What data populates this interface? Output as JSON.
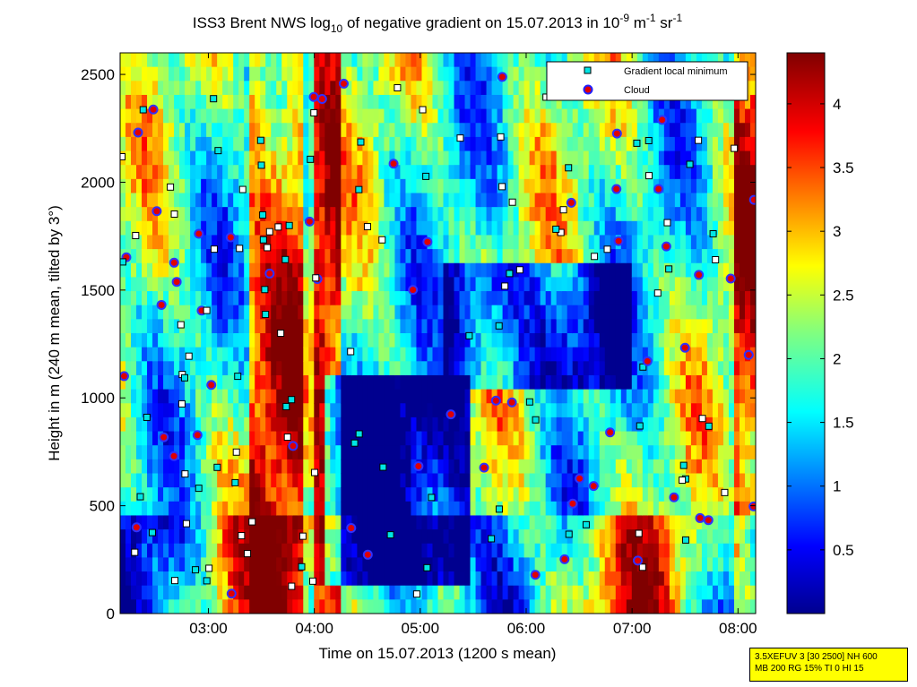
{
  "chart_data": {
    "type": "heatmap",
    "title_parts": {
      "pre": "ISS3 Brent NWS log",
      "sub": "10",
      "mid": " of negative gradient on 15.07.2013 in 10",
      "sup1": "-9",
      "m": " m",
      "sup2": "-1",
      "sr": " sr",
      "sup3": "-1"
    },
    "xlabel": "Time on 15.07.2013 (1200 s mean)",
    "ylabel": "Height in m (240 m mean, tilted by 3°)",
    "xlim": [
      "02:10",
      "08:10"
    ],
    "ylim": [
      0,
      2600
    ],
    "x_ticks": [
      "03:00",
      "04:00",
      "05:00",
      "06:00",
      "07:00",
      "08:00"
    ],
    "y_ticks": [
      "0",
      "500",
      "1000",
      "1500",
      "2000",
      "2500"
    ],
    "colorbar": {
      "range": [
        0,
        4.4
      ],
      "ticks": [
        "0.5",
        "1",
        "1.5",
        "2",
        "2.5",
        "3",
        "3.5",
        "4"
      ]
    },
    "legend": {
      "position": "top-right",
      "entries": [
        {
          "label": "Gradient local minimum",
          "marker": "square",
          "color": "#00e5e5"
        },
        {
          "label": "Cloud",
          "marker": "circle",
          "color": "#ff0000"
        }
      ]
    },
    "colors": {
      "low": "#00008f",
      "mid_low": "#00bfff",
      "mid": "#80ff80",
      "mid_high": "#ffd000",
      "high": "#ff2000",
      "max": "#800000"
    }
  },
  "info_box": {
    "line1": "3.5XEFUV 3 [30 2500] NH 600",
    "line2": "MB 200 RG 15% TI 0 HI 15"
  }
}
